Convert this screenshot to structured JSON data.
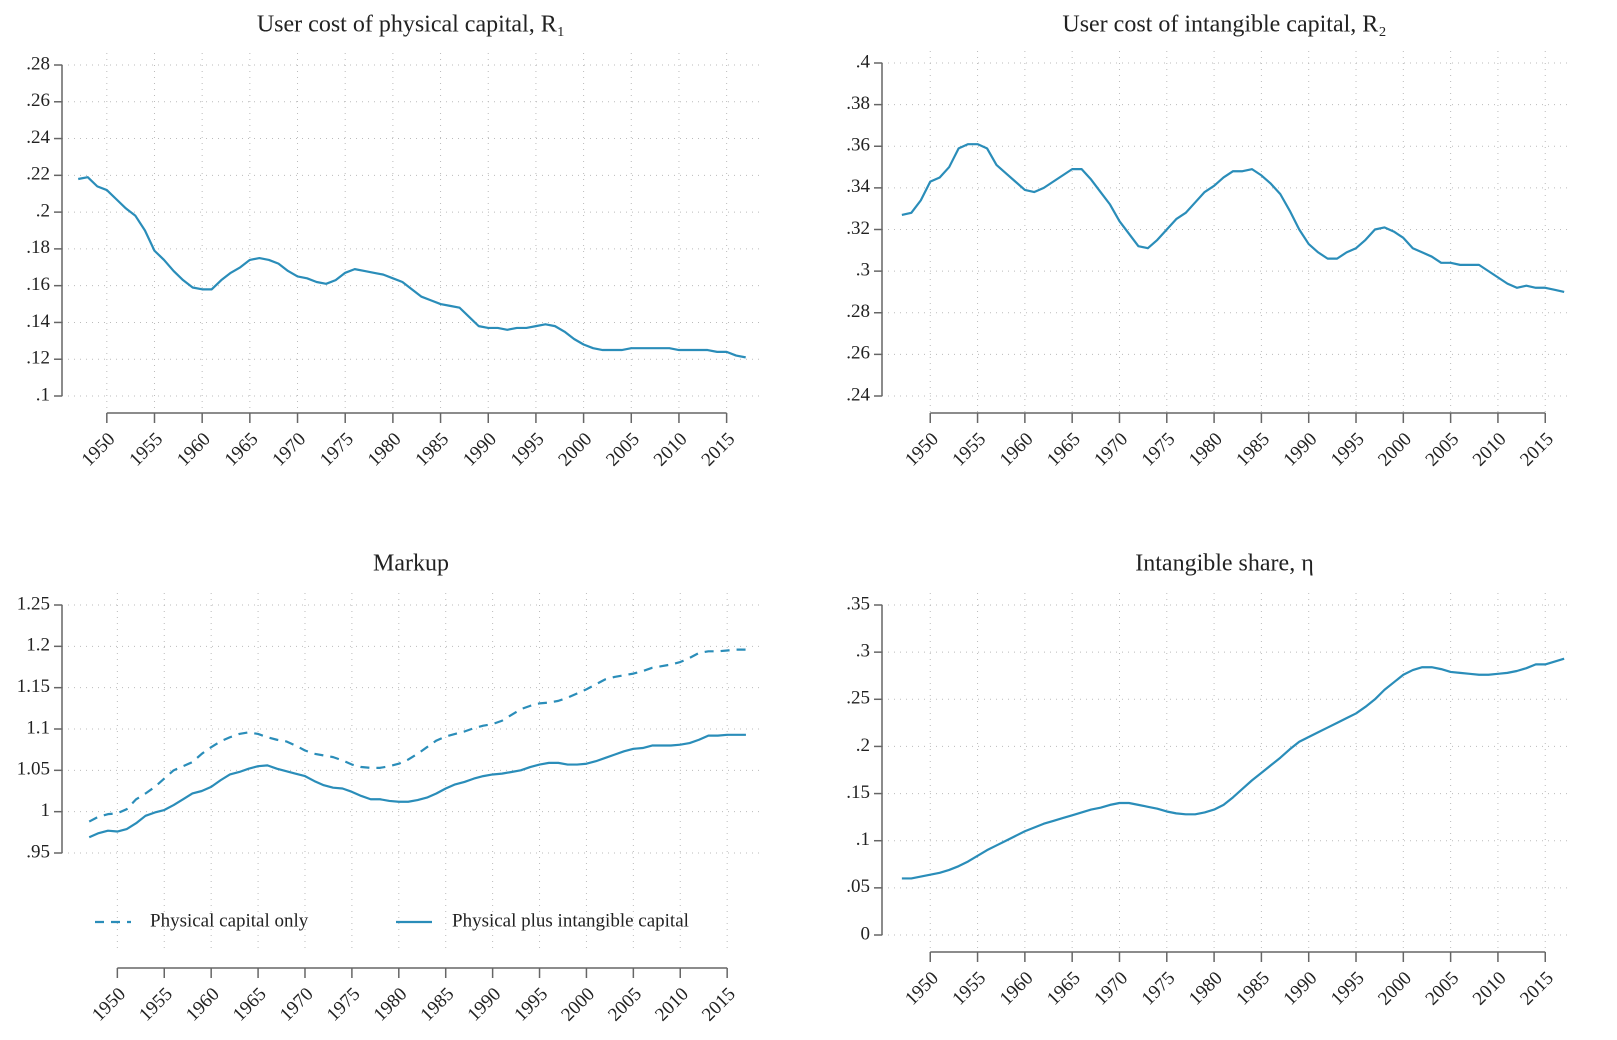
{
  "chart_data": [
    {
      "type": "line",
      "title": "User cost of physical capital, R₁",
      "x": [
        1947,
        1948,
        1949,
        1950,
        1951,
        1952,
        1953,
        1954,
        1955,
        1956,
        1957,
        1958,
        1959,
        1960,
        1961,
        1962,
        1963,
        1964,
        1965,
        1966,
        1967,
        1968,
        1969,
        1970,
        1971,
        1972,
        1973,
        1974,
        1975,
        1976,
        1977,
        1978,
        1979,
        1980,
        1981,
        1982,
        1983,
        1984,
        1985,
        1986,
        1987,
        1988,
        1989,
        1990,
        1991,
        1992,
        1993,
        1994,
        1995,
        1996,
        1997,
        1998,
        1999,
        2000,
        2001,
        2002,
        2003,
        2004,
        2005,
        2006,
        2007,
        2008,
        2009,
        2010,
        2011,
        2012,
        2013,
        2014,
        2015,
        2016,
        2017
      ],
      "series": [
        {
          "name": "R1",
          "color": "#2a8db9",
          "dash": "solid",
          "values": [
            0.218,
            0.219,
            0.214,
            0.212,
            0.207,
            0.202,
            0.198,
            0.19,
            0.179,
            0.174,
            0.168,
            0.163,
            0.159,
            0.158,
            0.158,
            0.163,
            0.167,
            0.17,
            0.174,
            0.175,
            0.174,
            0.172,
            0.168,
            0.165,
            0.164,
            0.162,
            0.161,
            0.163,
            0.167,
            0.169,
            0.168,
            0.167,
            0.166,
            0.164,
            0.162,
            0.158,
            0.154,
            0.152,
            0.15,
            0.149,
            0.148,
            0.143,
            0.138,
            0.137,
            0.137,
            0.136,
            0.137,
            0.137,
            0.138,
            0.139,
            0.138,
            0.135,
            0.131,
            0.128,
            0.126,
            0.125,
            0.125,
            0.125,
            0.126,
            0.126,
            0.126,
            0.126,
            0.126,
            0.125,
            0.125,
            0.125,
            0.125,
            0.124,
            0.124,
            0.122,
            0.121
          ]
        }
      ],
      "xlim": [
        1945.3,
        2018.5
      ],
      "xticks": [
        1950,
        1955,
        1960,
        1965,
        1970,
        1975,
        1980,
        1985,
        1990,
        1995,
        2000,
        2005,
        2010,
        2015
      ],
      "ylim": [
        0.1,
        0.28
      ],
      "yticks": [
        {
          "value": 0.1,
          "label": ".1"
        },
        {
          "value": 0.12,
          "label": ".12"
        },
        {
          "value": 0.14,
          "label": ".14"
        },
        {
          "value": 0.16,
          "label": ".16"
        },
        {
          "value": 0.18,
          "label": ".18"
        },
        {
          "value": 0.2,
          "label": ".2"
        },
        {
          "value": 0.22,
          "label": ".22"
        },
        {
          "value": 0.24,
          "label": ".24"
        },
        {
          "value": 0.26,
          "label": ".26"
        },
        {
          "value": 0.28,
          "label": ".28"
        }
      ],
      "grid": true
    },
    {
      "type": "line",
      "title": "User cost of intangible capital, R₂",
      "x": [
        1947,
        1948,
        1949,
        1950,
        1951,
        1952,
        1953,
        1954,
        1955,
        1956,
        1957,
        1958,
        1959,
        1960,
        1961,
        1962,
        1963,
        1964,
        1965,
        1966,
        1967,
        1968,
        1969,
        1970,
        1971,
        1972,
        1973,
        1974,
        1975,
        1976,
        1977,
        1978,
        1979,
        1980,
        1981,
        1982,
        1983,
        1984,
        1985,
        1986,
        1987,
        1988,
        1989,
        1990,
        1991,
        1992,
        1993,
        1994,
        1995,
        1996,
        1997,
        1998,
        1999,
        2000,
        2001,
        2002,
        2003,
        2004,
        2005,
        2006,
        2007,
        2008,
        2009,
        2010,
        2011,
        2012,
        2013,
        2014,
        2015,
        2016,
        2017
      ],
      "series": [
        {
          "name": "R2",
          "color": "#2a8db9",
          "dash": "solid",
          "values": [
            0.327,
            0.328,
            0.334,
            0.343,
            0.345,
            0.35,
            0.359,
            0.361,
            0.361,
            0.359,
            0.351,
            0.347,
            0.343,
            0.339,
            0.338,
            0.34,
            0.343,
            0.346,
            0.349,
            0.349,
            0.344,
            0.338,
            0.332,
            0.324,
            0.318,
            0.312,
            0.311,
            0.315,
            0.32,
            0.325,
            0.328,
            0.333,
            0.338,
            0.341,
            0.345,
            0.348,
            0.348,
            0.349,
            0.346,
            0.342,
            0.337,
            0.329,
            0.32,
            0.313,
            0.309,
            0.306,
            0.306,
            0.309,
            0.311,
            0.315,
            0.32,
            0.321,
            0.319,
            0.316,
            0.311,
            0.309,
            0.307,
            0.304,
            0.304,
            0.303,
            0.303,
            0.303,
            0.3,
            0.297,
            0.294,
            0.292,
            0.293,
            0.292,
            0.292,
            0.291,
            0.29
          ]
        }
      ],
      "xlim": [
        1944.9,
        2017.3
      ],
      "xticks": [
        1950,
        1955,
        1960,
        1965,
        1970,
        1975,
        1980,
        1985,
        1990,
        1995,
        2000,
        2005,
        2010,
        2015
      ],
      "ylim": [
        0.24,
        0.4
      ],
      "yticks": [
        {
          "value": 0.24,
          "label": ".24"
        },
        {
          "value": 0.26,
          "label": ".26"
        },
        {
          "value": 0.28,
          "label": ".28"
        },
        {
          "value": 0.3,
          "label": ".3"
        },
        {
          "value": 0.32,
          "label": ".32"
        },
        {
          "value": 0.34,
          "label": ".34"
        },
        {
          "value": 0.36,
          "label": ".36"
        },
        {
          "value": 0.38,
          "label": ".38"
        },
        {
          "value": 0.4,
          "label": ".4"
        }
      ],
      "grid": true
    },
    {
      "type": "line",
      "title": "Markup",
      "x": [
        1947,
        1948,
        1949,
        1950,
        1951,
        1952,
        1953,
        1954,
        1955,
        1956,
        1957,
        1958,
        1959,
        1960,
        1961,
        1962,
        1963,
        1964,
        1965,
        1966,
        1967,
        1968,
        1969,
        1970,
        1971,
        1972,
        1973,
        1974,
        1975,
        1976,
        1977,
        1978,
        1979,
        1980,
        1981,
        1982,
        1983,
        1984,
        1985,
        1986,
        1987,
        1988,
        1989,
        1990,
        1991,
        1992,
        1993,
        1994,
        1995,
        1996,
        1997,
        1998,
        1999,
        2000,
        2001,
        2002,
        2003,
        2004,
        2005,
        2006,
        2007,
        2008,
        2009,
        2010,
        2011,
        2012,
        2013,
        2014,
        2015,
        2016,
        2017
      ],
      "series": [
        {
          "name": "Physical capital only",
          "color": "#2a8db9",
          "dash": "dashed",
          "values": [
            0.988,
            0.994,
            0.997,
            0.998,
            1.003,
            1.015,
            1.022,
            1.03,
            1.04,
            1.05,
            1.055,
            1.06,
            1.07,
            1.078,
            1.085,
            1.09,
            1.094,
            1.096,
            1.094,
            1.09,
            1.087,
            1.085,
            1.08,
            1.074,
            1.07,
            1.068,
            1.066,
            1.062,
            1.057,
            1.054,
            1.053,
            1.053,
            1.055,
            1.058,
            1.063,
            1.07,
            1.078,
            1.086,
            1.091,
            1.094,
            1.097,
            1.101,
            1.104,
            1.106,
            1.11,
            1.117,
            1.124,
            1.128,
            1.131,
            1.132,
            1.134,
            1.138,
            1.143,
            1.148,
            1.154,
            1.16,
            1.163,
            1.165,
            1.167,
            1.17,
            1.174,
            1.176,
            1.178,
            1.181,
            1.186,
            1.192,
            1.194,
            1.194,
            1.195,
            1.196,
            1.196
          ]
        },
        {
          "name": "Physical plus intangible capital",
          "color": "#2a8db9",
          "dash": "solid",
          "values": [
            0.969,
            0.974,
            0.977,
            0.976,
            0.979,
            0.986,
            0.995,
            0.999,
            1.002,
            1.008,
            1.015,
            1.022,
            1.025,
            1.03,
            1.038,
            1.045,
            1.048,
            1.052,
            1.055,
            1.056,
            1.052,
            1.049,
            1.046,
            1.043,
            1.037,
            1.032,
            1.029,
            1.028,
            1.024,
            1.019,
            1.015,
            1.015,
            1.013,
            1.012,
            1.012,
            1.014,
            1.017,
            1.022,
            1.028,
            1.033,
            1.036,
            1.04,
            1.043,
            1.045,
            1.046,
            1.048,
            1.05,
            1.054,
            1.057,
            1.059,
            1.059,
            1.057,
            1.057,
            1.058,
            1.061,
            1.065,
            1.069,
            1.073,
            1.076,
            1.077,
            1.08,
            1.08,
            1.08,
            1.081,
            1.083,
            1.087,
            1.092,
            1.092,
            1.093,
            1.093,
            1.093
          ]
        }
      ],
      "xlim": [
        1944.1,
        2018.5
      ],
      "xticks": [
        1950,
        1955,
        1960,
        1965,
        1970,
        1975,
        1980,
        1985,
        1990,
        1995,
        2000,
        2005,
        2010,
        2015
      ],
      "ylim": [
        0.95,
        1.25
      ],
      "yticks": [
        {
          "value": 0.95,
          "label": ".95"
        },
        1,
        1.05,
        1.1,
        1.15,
        1.2,
        1.25
      ],
      "grid": true,
      "legend": "bottom"
    },
    {
      "type": "line",
      "title": "Intangible share, η",
      "x": [
        1947,
        1948,
        1949,
        1950,
        1951,
        1952,
        1953,
        1954,
        1955,
        1956,
        1957,
        1958,
        1959,
        1960,
        1961,
        1962,
        1963,
        1964,
        1965,
        1966,
        1967,
        1968,
        1969,
        1970,
        1971,
        1972,
        1973,
        1974,
        1975,
        1976,
        1977,
        1978,
        1979,
        1980,
        1981,
        1982,
        1983,
        1984,
        1985,
        1986,
        1987,
        1988,
        1989,
        1990,
        1991,
        1992,
        1993,
        1994,
        1995,
        1996,
        1997,
        1998,
        1999,
        2000,
        2001,
        2002,
        2003,
        2004,
        2005,
        2006,
        2007,
        2008,
        2009,
        2010,
        2011,
        2012,
        2013,
        2014,
        2015,
        2016,
        2017
      ],
      "series": [
        {
          "name": "eta",
          "color": "#2a8db9",
          "dash": "solid",
          "values": [
            0.06,
            0.06,
            0.062,
            0.064,
            0.066,
            0.069,
            0.073,
            0.078,
            0.084,
            0.09,
            0.095,
            0.1,
            0.105,
            0.11,
            0.114,
            0.118,
            0.121,
            0.124,
            0.127,
            0.13,
            0.133,
            0.135,
            0.138,
            0.14,
            0.14,
            0.138,
            0.136,
            0.134,
            0.131,
            0.129,
            0.128,
            0.128,
            0.13,
            0.133,
            0.138,
            0.146,
            0.155,
            0.164,
            0.172,
            0.18,
            0.188,
            0.197,
            0.205,
            0.21,
            0.215,
            0.22,
            0.225,
            0.23,
            0.235,
            0.242,
            0.25,
            0.26,
            0.268,
            0.276,
            0.281,
            0.284,
            0.284,
            0.282,
            0.279,
            0.278,
            0.277,
            0.276,
            0.276,
            0.277,
            0.278,
            0.28,
            0.283,
            0.287,
            0.287,
            0.29,
            0.293
          ]
        }
      ],
      "xlim": [
        1944.9,
        2017.3
      ],
      "xticks": [
        1950,
        1955,
        1960,
        1965,
        1970,
        1975,
        1980,
        1985,
        1990,
        1995,
        2000,
        2005,
        2010,
        2015
      ],
      "ylim": [
        0,
        0.35
      ],
      "yticks": [
        0,
        {
          "value": 0.05,
          "label": ".05"
        },
        {
          "value": 0.1,
          "label": ".1"
        },
        {
          "value": 0.15,
          "label": ".15"
        },
        {
          "value": 0.2,
          "label": ".2"
        },
        {
          "value": 0.25,
          "label": ".25"
        },
        {
          "value": 0.3,
          "label": ".3"
        },
        {
          "value": 0.35,
          "label": ".35"
        }
      ],
      "grid": true
    }
  ]
}
